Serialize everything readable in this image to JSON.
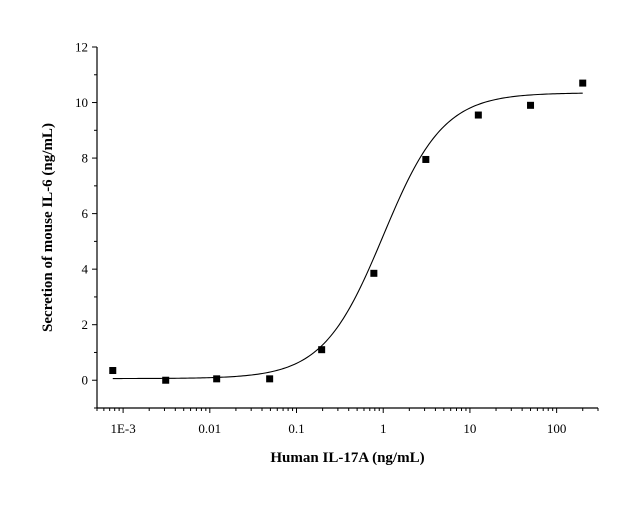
{
  "chart_data": {
    "type": "scatter",
    "xlabel": "Human IL-17A (ng/mL)",
    "ylabel": "Secretion of mouse IL-6 (ng/mL)",
    "x_scale": "log",
    "xlim": [
      0.0005,
      300
    ],
    "ylim": [
      -1,
      12
    ],
    "x_ticks": [
      {
        "value": 0.001,
        "label": "1E-3"
      },
      {
        "value": 0.01,
        "label": "0.01"
      },
      {
        "value": 0.1,
        "label": "0.1"
      },
      {
        "value": 1,
        "label": "1"
      },
      {
        "value": 10,
        "label": "10"
      },
      {
        "value": 100,
        "label": "100"
      }
    ],
    "y_ticks": [
      {
        "value": 0,
        "label": "0"
      },
      {
        "value": 2,
        "label": "2"
      },
      {
        "value": 4,
        "label": "4"
      },
      {
        "value": 6,
        "label": "6"
      },
      {
        "value": 8,
        "label": "8"
      },
      {
        "value": 10,
        "label": "10"
      },
      {
        "value": 12,
        "label": "12"
      }
    ],
    "series": [
      {
        "type": "scatter",
        "marker": "square",
        "color": "#000000",
        "x": [
          0.00076,
          0.0031,
          0.012,
          0.049,
          0.195,
          0.78,
          3.1,
          12.5,
          50,
          200
        ],
        "y": [
          0.35,
          0.0,
          0.05,
          0.05,
          1.1,
          3.85,
          7.95,
          9.55,
          9.9,
          10.7
        ]
      },
      {
        "type": "line",
        "fit": "four-parameter logistic",
        "color": "#000000",
        "bottom": 0.06,
        "top": 10.35,
        "ec50": 1.0,
        "hill": 1.25
      }
    ],
    "grid": false,
    "legend": "none"
  }
}
